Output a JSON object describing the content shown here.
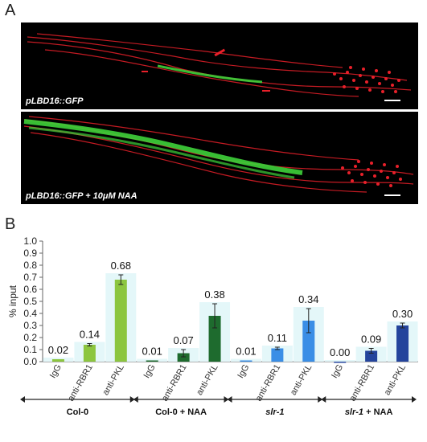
{
  "panels": {
    "a_letter": "A",
    "b_letter": "B"
  },
  "micrographs": [
    {
      "label": "pLBD16::GFP"
    },
    {
      "label": "pLBD16::GFP  + 10μM NAA"
    }
  ],
  "colors": {
    "micro_background": "#000000",
    "micro_red": "#e8202a",
    "micro_green": "#3ed13a"
  },
  "chart_data": {
    "type": "bar",
    "title": "",
    "xlabel": "",
    "ylabel": "% input",
    "ylim": [
      0,
      1.0
    ],
    "yticks": [
      "0.0",
      "0.1",
      "0.2",
      "0.3",
      "0.4",
      "0.5",
      "0.6",
      "0.7",
      "0.8",
      "0.9",
      "1.0"
    ],
    "categories": [
      "IgG",
      "anti-RBR1",
      "anti-PKL",
      "IgG",
      "anti-RBR1",
      "anti-PKL",
      "IgG",
      "anti-RBR1",
      "anti-PKL",
      "IgG",
      "anti-RBR1",
      "anti-PKL"
    ],
    "values": [
      0.02,
      0.14,
      0.68,
      0.01,
      0.07,
      0.38,
      0.01,
      0.11,
      0.34,
      0.0,
      0.09,
      0.3
    ],
    "value_labels": [
      "0.02",
      "0.14",
      "0.68",
      "0.01",
      "0.07",
      "0.38",
      "0.01",
      "0.11",
      "0.34",
      "0.00",
      "0.09",
      "0.30"
    ],
    "errors": [
      0.0,
      0.01,
      0.04,
      0.0,
      0.03,
      0.1,
      0.0,
      0.01,
      0.1,
      0.0,
      0.02,
      0.02
    ],
    "bar_colors": [
      "#8cc63f",
      "#8cc63f",
      "#8cc63f",
      "#1e6b2e",
      "#1e6b2e",
      "#1e6b2e",
      "#3a8ee6",
      "#3a8ee6",
      "#3a8ee6",
      "#24449c",
      "#24449c",
      "#24449c"
    ],
    "bar_background": "#e4f7f9",
    "groups": [
      {
        "label": "Col-0",
        "italic": false
      },
      {
        "label": "Col-0 + NAA",
        "italic": false
      },
      {
        "label": "slr-1",
        "italic": true
      },
      {
        "label": "slr-1 + NAA",
        "italic": "partial"
      }
    ],
    "grid": false
  }
}
